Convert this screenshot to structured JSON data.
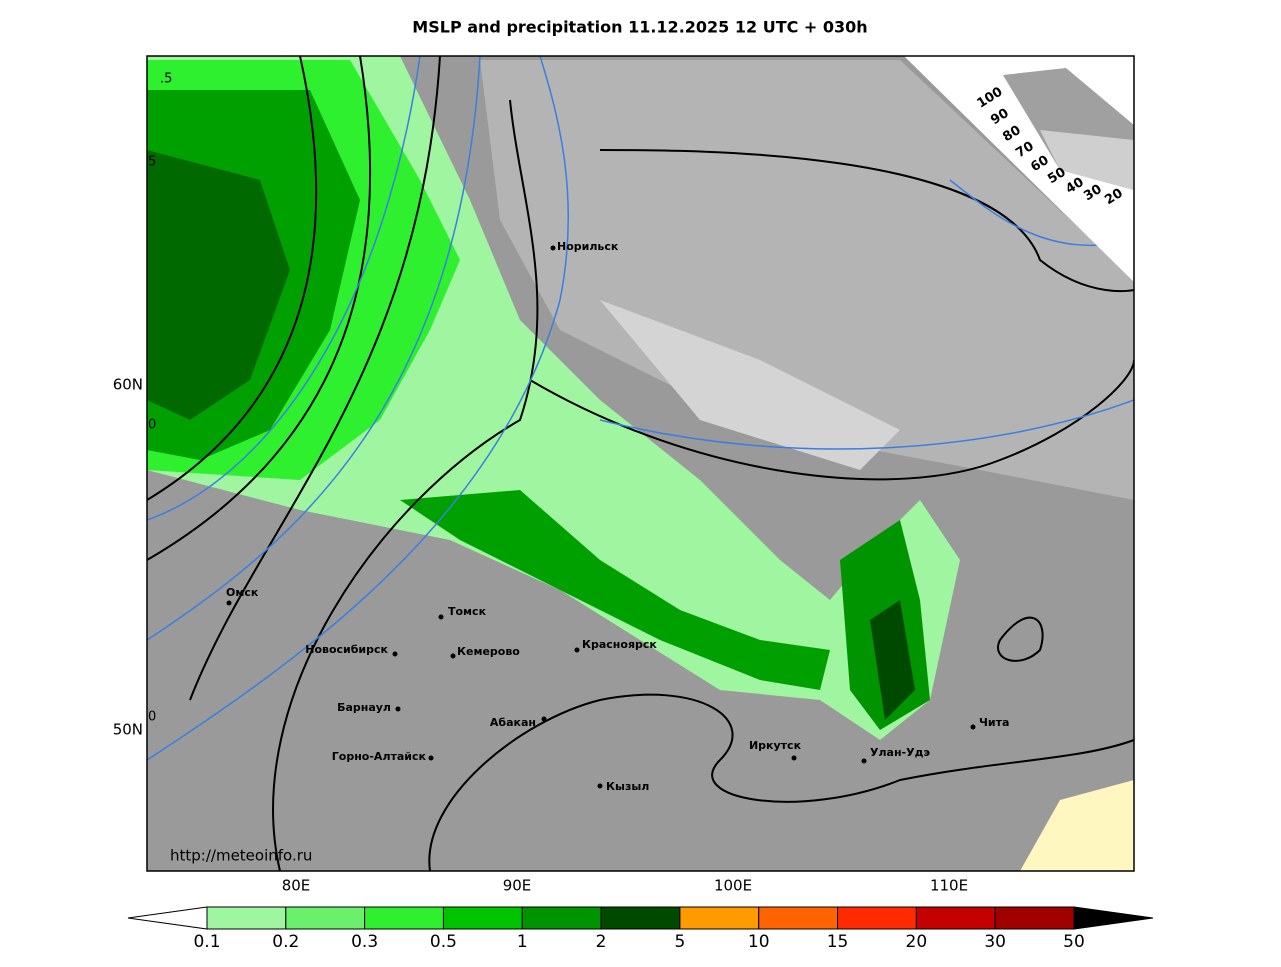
{
  "title": "MSLP and precipitation 11.12.2025 12 UTC + 030h",
  "map": {
    "lon_labels": [
      "80E",
      "90E",
      "100E",
      "110E"
    ],
    "lat_labels": [
      "60N",
      "50N"
    ],
    "isobar_labels": [
      ".5",
      "5",
      "0",
      "0"
    ],
    "cities": [
      "Норильск",
      "Омск",
      "Томск",
      "Новосибирск",
      "Кемерово",
      "Красноярск",
      "Барнаул",
      "Абакан",
      "Горно-Алтайск",
      "Иркутск",
      "Кызыл",
      "Улан-Удэ",
      "Чита"
    ],
    "source": "http://meteoinfo.ru"
  },
  "cloud_scale": [
    "100",
    "90",
    "80",
    "70",
    "60",
    "50",
    "40",
    "30",
    "20"
  ],
  "colorbar": {
    "labels": [
      "0.1",
      "0.2",
      "0.3",
      "0.5",
      "1",
      "2",
      "5",
      "10",
      "15",
      "20",
      "30",
      "50"
    ],
    "colors": [
      "#a0f5a0",
      "#6af06a",
      "#2ef02e",
      "#00c400",
      "#009400",
      "#004a00",
      "#ff9a00",
      "#ff6400",
      "#ff2a00",
      "#c40000",
      "#a00000"
    ]
  }
}
